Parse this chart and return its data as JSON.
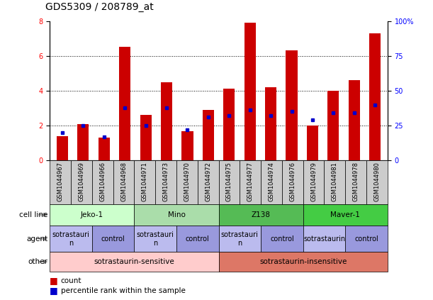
{
  "title": "GDS5309 / 208789_at",
  "samples": [
    "GSM1044967",
    "GSM1044969",
    "GSM1044966",
    "GSM1044968",
    "GSM1044971",
    "GSM1044973",
    "GSM1044970",
    "GSM1044972",
    "GSM1044975",
    "GSM1044977",
    "GSM1044974",
    "GSM1044976",
    "GSM1044979",
    "GSM1044981",
    "GSM1044978",
    "GSM1044980"
  ],
  "counts": [
    1.4,
    2.1,
    1.3,
    6.5,
    2.6,
    4.5,
    1.7,
    2.9,
    4.1,
    7.9,
    4.2,
    6.3,
    2.0,
    4.0,
    4.6,
    7.3
  ],
  "percentiles": [
    20,
    25,
    17,
    38,
    25,
    38,
    22,
    31,
    32,
    36,
    32,
    35,
    29,
    34,
    34,
    40
  ],
  "ylim_left": [
    0,
    8
  ],
  "ylim_right": [
    0,
    100
  ],
  "yticks_left": [
    0,
    2,
    4,
    6,
    8
  ],
  "yticks_right": [
    0,
    25,
    50,
    75,
    100
  ],
  "cell_lines": [
    {
      "label": "Jeko-1",
      "start": 0,
      "end": 4,
      "color": "#ccffcc"
    },
    {
      "label": "Mino",
      "start": 4,
      "end": 8,
      "color": "#aaddaa"
    },
    {
      "label": "Z138",
      "start": 8,
      "end": 12,
      "color": "#55bb55"
    },
    {
      "label": "Maver-1",
      "start": 12,
      "end": 16,
      "color": "#44cc44"
    }
  ],
  "agents": [
    {
      "label": "sotrastauri\nn",
      "start": 0,
      "end": 2,
      "color": "#bbbbee"
    },
    {
      "label": "control",
      "start": 2,
      "end": 4,
      "color": "#9999dd"
    },
    {
      "label": "sotrastauri\nn",
      "start": 4,
      "end": 6,
      "color": "#bbbbee"
    },
    {
      "label": "control",
      "start": 6,
      "end": 8,
      "color": "#9999dd"
    },
    {
      "label": "sotrastauri\nn",
      "start": 8,
      "end": 10,
      "color": "#bbbbee"
    },
    {
      "label": "control",
      "start": 10,
      "end": 12,
      "color": "#9999dd"
    },
    {
      "label": "sotrastaurin",
      "start": 12,
      "end": 14,
      "color": "#bbbbee"
    },
    {
      "label": "control",
      "start": 14,
      "end": 16,
      "color": "#9999dd"
    }
  ],
  "others": [
    {
      "label": "sotrastaurin-sensitive",
      "start": 0,
      "end": 8,
      "color": "#ffcccc"
    },
    {
      "label": "sotrastaurin-insensitive",
      "start": 8,
      "end": 16,
      "color": "#dd7766"
    }
  ],
  "bar_color": "#cc0000",
  "percentile_color": "#0000cc",
  "xticklabel_bg": "#cccccc",
  "grid_color": "black",
  "title_fontsize": 10,
  "bar_tick_fontsize": 7,
  "sample_fontsize": 6,
  "row_fontsize": 7.5,
  "legend_fontsize": 7.5,
  "row_label_fontsize": 7.5,
  "grid_yticks": [
    2,
    4,
    6
  ]
}
